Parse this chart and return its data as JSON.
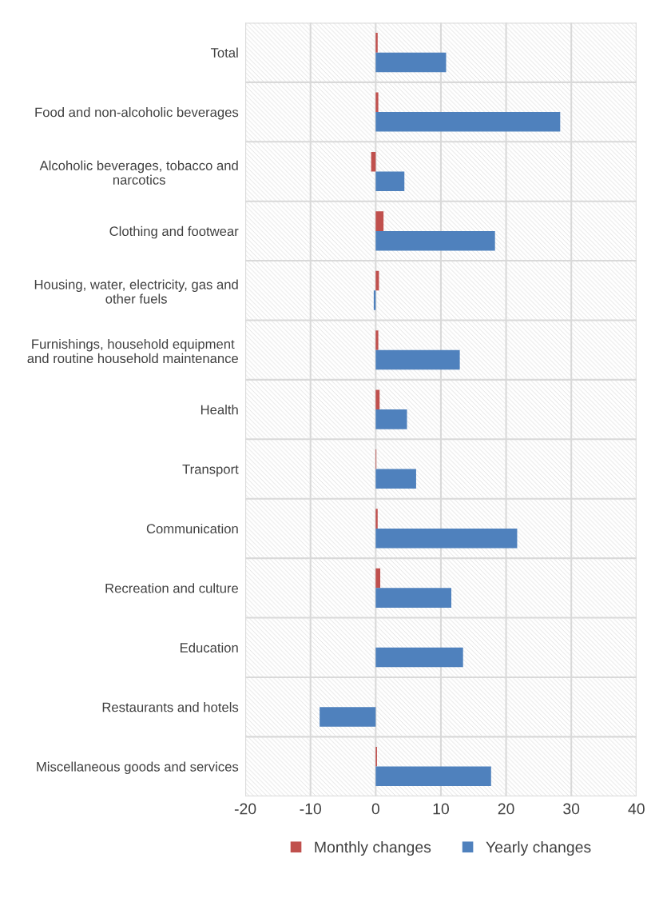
{
  "chart_data": {
    "type": "bar",
    "orientation": "horizontal",
    "categories": [
      "Total",
      "Food and non-alcoholic beverages",
      "Alcoholic beverages, tobacco and\nnarcotics",
      "Clothing and footwear",
      "Housing, water, electricity, gas and\nother fuels",
      "Furnishings, household equipment\nand routine household maintenance",
      "Health",
      "Transport",
      "Communication",
      "Recreation and culture",
      "Education",
      "Restaurants and hotels",
      "Miscellaneous goods and services"
    ],
    "series": [
      {
        "name": "Monthly changes",
        "color": "#c0504d",
        "values": [
          0.3,
          0.4,
          -0.7,
          1.2,
          0.5,
          0.4,
          0.6,
          0.1,
          0.3,
          0.7,
          null,
          null,
          0.2
        ]
      },
      {
        "name": "Yearly changes",
        "color": "#4f81bd",
        "values": [
          10.8,
          28.3,
          4.4,
          18.3,
          -0.3,
          12.9,
          4.8,
          6.2,
          21.7,
          11.6,
          13.4,
          -8.6,
          17.7
        ]
      }
    ],
    "xlim": [
      -20,
      40
    ],
    "xticks": [
      -20,
      -10,
      0,
      10,
      20,
      30,
      40
    ],
    "grid": true,
    "legend": "bottom"
  }
}
